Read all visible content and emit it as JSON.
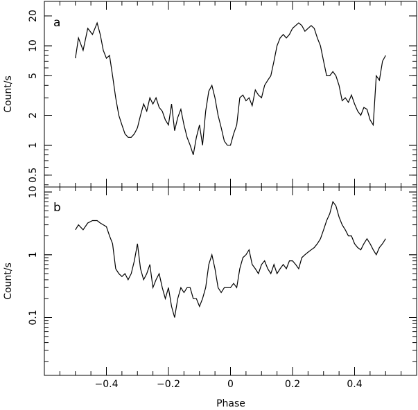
{
  "chart_data": [
    {
      "type": "line",
      "panel_label": "a",
      "xlabel": "",
      "ylabel": "Count/s",
      "xlim": [
        -0.6,
        0.6
      ],
      "ylim": [
        0.38,
        28
      ],
      "yscale": "log",
      "grid": false,
      "x_ticks": [
        -0.4,
        -0.2,
        0,
        0.2,
        0.4
      ],
      "y_ticks": [
        0.5,
        1,
        2,
        5,
        10,
        20
      ],
      "y_tick_labels": [
        "0.5",
        "1",
        "2",
        "5",
        "10",
        "20"
      ],
      "series": [
        {
          "x": [
            -0.5,
            -0.49,
            -0.475,
            -0.46,
            -0.445,
            -0.43,
            -0.42,
            -0.41,
            -0.4,
            -0.39,
            -0.38,
            -0.37,
            -0.36,
            -0.35,
            -0.34,
            -0.33,
            -0.32,
            -0.31,
            -0.3,
            -0.29,
            -0.28,
            -0.27,
            -0.26,
            -0.25,
            -0.24,
            -0.23,
            -0.22,
            -0.21,
            -0.2,
            -0.19,
            -0.18,
            -0.17,
            -0.16,
            -0.15,
            -0.14,
            -0.13,
            -0.12,
            -0.11,
            -0.1,
            -0.09,
            -0.08,
            -0.07,
            -0.06,
            -0.05,
            -0.04,
            -0.03,
            -0.02,
            -0.01,
            0.0,
            0.01,
            0.02,
            0.03,
            0.04,
            0.05,
            0.06,
            0.07,
            0.08,
            0.09,
            0.1,
            0.11,
            0.12,
            0.13,
            0.14,
            0.15,
            0.16,
            0.17,
            0.18,
            0.19,
            0.2,
            0.21,
            0.22,
            0.23,
            0.24,
            0.25,
            0.26,
            0.27,
            0.28,
            0.29,
            0.3,
            0.31,
            0.32,
            0.33,
            0.34,
            0.35,
            0.36,
            0.37,
            0.38,
            0.39,
            0.4,
            0.41,
            0.42,
            0.43,
            0.44,
            0.45,
            0.46,
            0.47,
            0.48,
            0.49,
            0.5
          ],
          "y": [
            7.5,
            12,
            9,
            15,
            13,
            17,
            13,
            9,
            7.5,
            8,
            5,
            3,
            2,
            1.6,
            1.3,
            1.2,
            1.2,
            1.3,
            1.5,
            2,
            2.6,
            2.2,
            3,
            2.6,
            3,
            2.4,
            2.2,
            1.8,
            1.6,
            2.6,
            1.4,
            1.9,
            2.3,
            1.6,
            1.2,
            1.0,
            0.8,
            1.2,
            1.6,
            1.0,
            2.2,
            3.5,
            4.0,
            3.0,
            2.0,
            1.5,
            1.1,
            1.0,
            1.0,
            1.3,
            1.6,
            3.0,
            3.2,
            2.8,
            3.0,
            2.5,
            3.6,
            3.2,
            3.0,
            4.0,
            4.5,
            5.0,
            7.0,
            10,
            12,
            13,
            12,
            13,
            15,
            16,
            17,
            16,
            14,
            15,
            16,
            15,
            12,
            10,
            7.0,
            5.0,
            5.0,
            5.5,
            5.0,
            4.0,
            2.8,
            3.0,
            2.7,
            3.2,
            2.6,
            2.2,
            2.0,
            2.4,
            2.3,
            1.8,
            1.6,
            5.0,
            4.5,
            7.0,
            8.0
          ]
        }
      ]
    },
    {
      "type": "line",
      "panel_label": "b",
      "xlabel": "Phase",
      "ylabel": "Count/s",
      "xlim": [
        -0.6,
        0.6
      ],
      "ylim": [
        0.012,
        12
      ],
      "yscale": "log",
      "grid": false,
      "x_ticks": [
        -0.4,
        -0.2,
        0,
        0.2,
        0.4
      ],
      "x_tick_labels": [
        "−0.4",
        "−0.2",
        "0",
        "0.2",
        "0.4"
      ],
      "y_ticks": [
        0.1,
        1,
        10
      ],
      "y_tick_labels": [
        "0.1",
        "1",
        "10"
      ],
      "series": [
        {
          "x": [
            -0.5,
            -0.49,
            -0.475,
            -0.46,
            -0.445,
            -0.43,
            -0.42,
            -0.41,
            -0.4,
            -0.39,
            -0.38,
            -0.37,
            -0.36,
            -0.35,
            -0.34,
            -0.33,
            -0.32,
            -0.31,
            -0.3,
            -0.29,
            -0.28,
            -0.27,
            -0.26,
            -0.25,
            -0.24,
            -0.23,
            -0.22,
            -0.21,
            -0.2,
            -0.19,
            -0.18,
            -0.17,
            -0.16,
            -0.15,
            -0.14,
            -0.13,
            -0.12,
            -0.11,
            -0.1,
            -0.09,
            -0.08,
            -0.07,
            -0.06,
            -0.05,
            -0.04,
            -0.03,
            -0.02,
            -0.01,
            0.0,
            0.01,
            0.02,
            0.03,
            0.04,
            0.05,
            0.06,
            0.07,
            0.08,
            0.09,
            0.1,
            0.11,
            0.12,
            0.13,
            0.14,
            0.15,
            0.16,
            0.17,
            0.18,
            0.19,
            0.2,
            0.21,
            0.22,
            0.23,
            0.24,
            0.25,
            0.26,
            0.27,
            0.28,
            0.29,
            0.3,
            0.31,
            0.32,
            0.33,
            0.34,
            0.35,
            0.36,
            0.37,
            0.38,
            0.39,
            0.4,
            0.41,
            0.42,
            0.43,
            0.44,
            0.45,
            0.46,
            0.47,
            0.48,
            0.49,
            0.5
          ],
          "y": [
            2.5,
            3.0,
            2.5,
            3.2,
            3.5,
            3.5,
            3.2,
            3.0,
            2.8,
            2.0,
            1.5,
            0.6,
            0.5,
            0.45,
            0.5,
            0.4,
            0.5,
            0.8,
            1.5,
            0.6,
            0.4,
            0.5,
            0.7,
            0.3,
            0.4,
            0.5,
            0.3,
            0.2,
            0.3,
            0.15,
            0.1,
            0.2,
            0.3,
            0.25,
            0.3,
            0.3,
            0.2,
            0.2,
            0.15,
            0.2,
            0.3,
            0.7,
            1.0,
            0.6,
            0.3,
            0.25,
            0.3,
            0.3,
            0.3,
            0.35,
            0.3,
            0.6,
            0.9,
            1.0,
            1.2,
            0.7,
            0.6,
            0.5,
            0.7,
            0.8,
            0.6,
            0.5,
            0.7,
            0.5,
            0.6,
            0.7,
            0.6,
            0.8,
            0.8,
            0.7,
            0.6,
            0.9,
            1.0,
            1.1,
            1.2,
            1.3,
            1.5,
            1.8,
            2.5,
            3.5,
            4.5,
            7.0,
            6.0,
            4.0,
            3.0,
            2.5,
            2.0,
            2.0,
            1.5,
            1.3,
            1.2,
            1.5,
            1.8,
            1.5,
            1.2,
            1.0,
            1.3,
            1.5,
            1.8
          ]
        }
      ]
    }
  ]
}
